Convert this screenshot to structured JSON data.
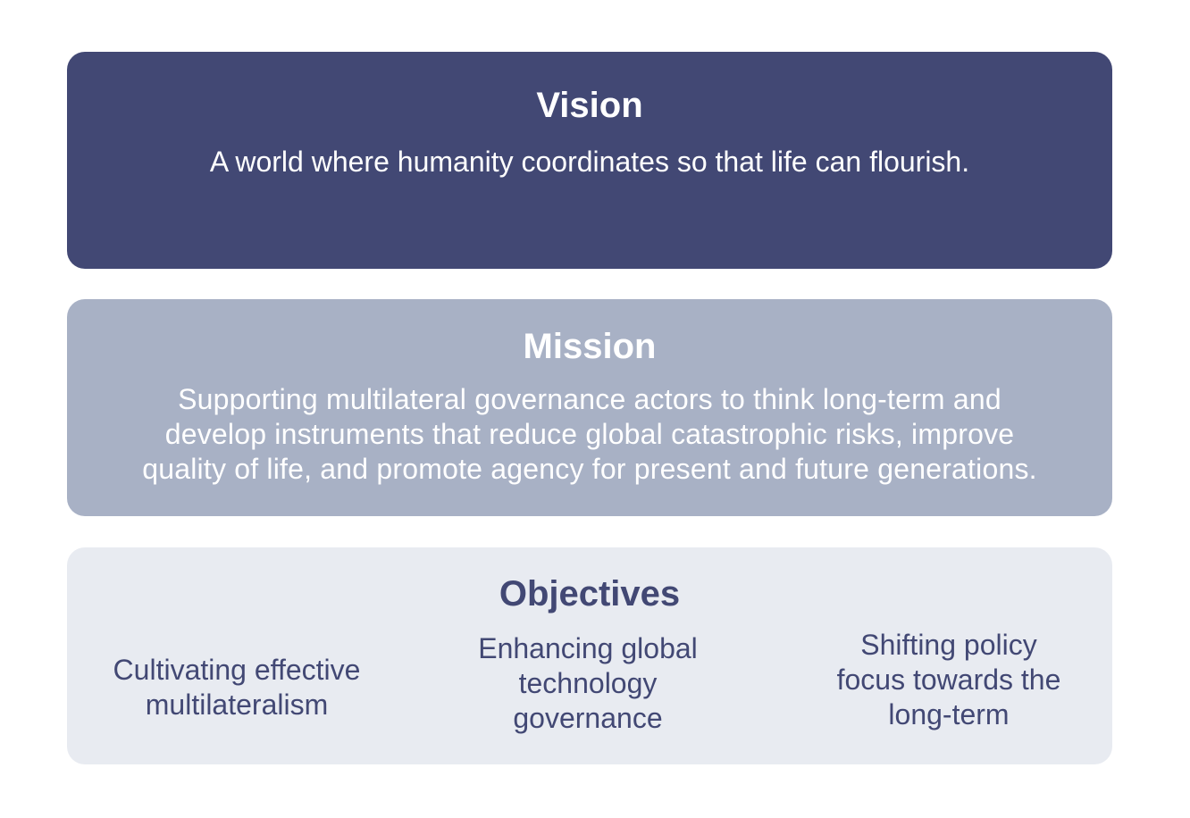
{
  "vision": {
    "title": "Vision",
    "text": "A world where humanity coordinates so that life can flourish."
  },
  "mission": {
    "title": "Mission",
    "text": "Supporting multilateral governance actors to think long-term and\ndevelop instruments that reduce global catastrophic risks, improve\nquality of life, and promote agency for present and future generations."
  },
  "objectives": {
    "title": "Objectives",
    "items": [
      "Cultivating effective\nmultilateralism",
      "Enhancing global\ntechnology\ngovernance",
      "Shifting policy\nfocus towards the\nlong-term"
    ]
  },
  "colors": {
    "vision_bg": "#424874",
    "mission_bg": "#a8b1c5",
    "objectives_bg": "#e8ebf1",
    "objectives_text": "#424874"
  }
}
